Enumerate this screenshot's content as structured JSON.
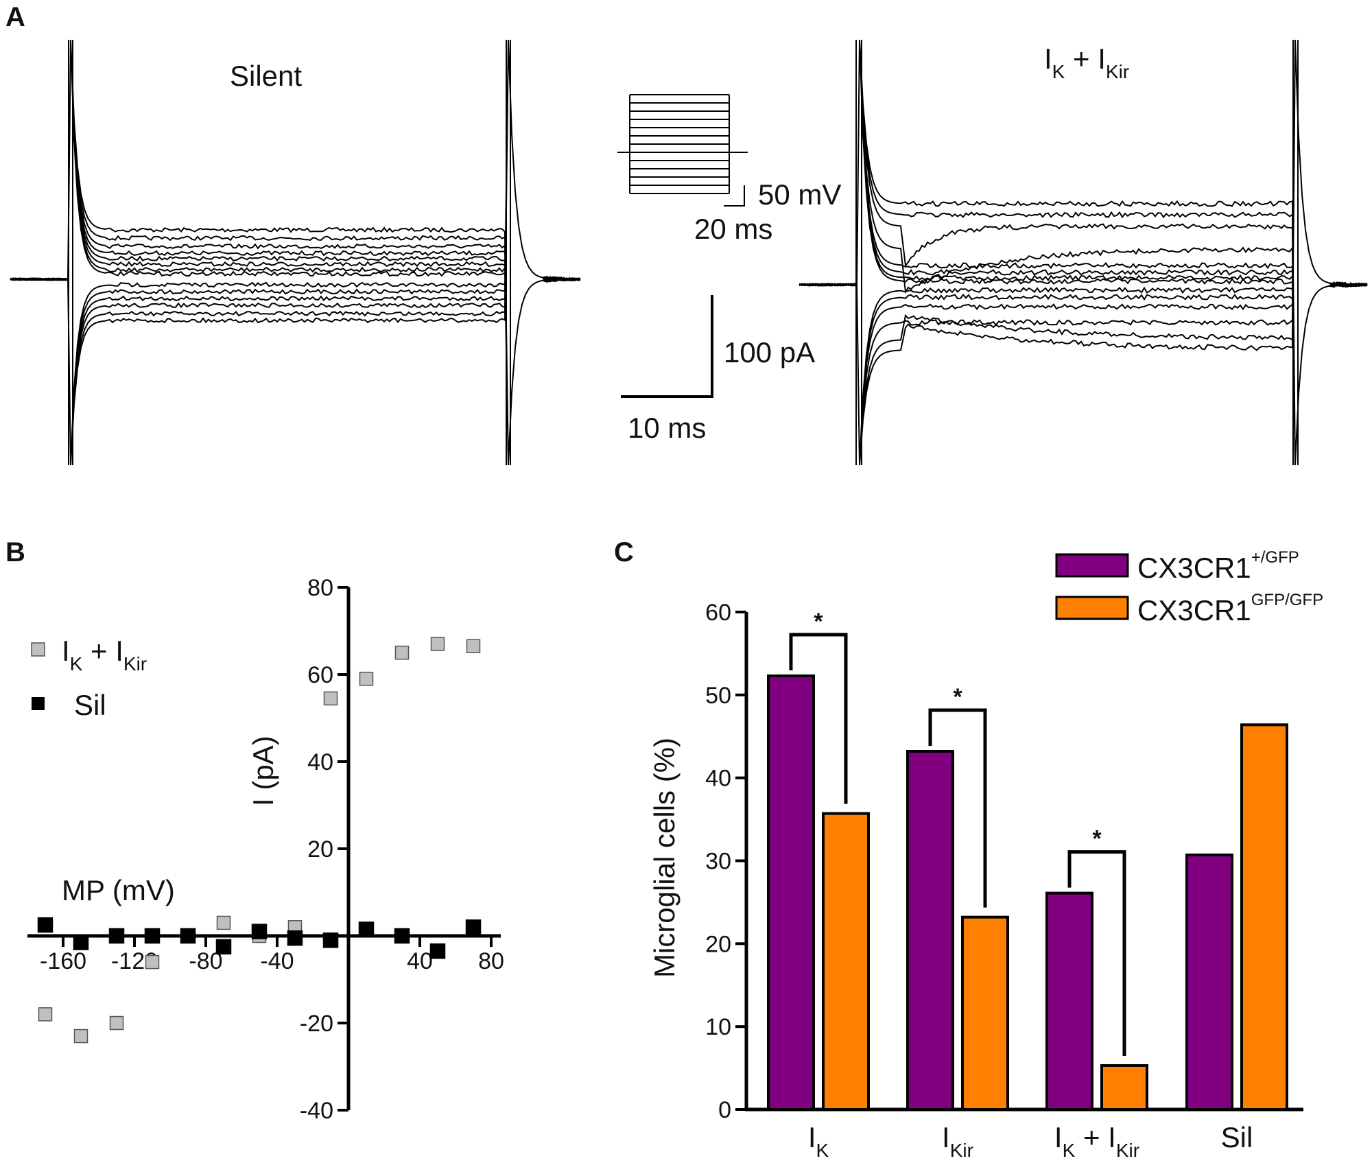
{
  "panel_labels": {
    "a": "A",
    "b": "B",
    "c": "C"
  },
  "panel_a": {
    "left_title": "Silent",
    "right_title_main": "I",
    "right_title_sub1": "K",
    "right_title_plus": " + I",
    "right_title_sub2": "Kir",
    "protocol_scale_v": "50 mV",
    "protocol_scale_t": "20 ms",
    "current_scale_y": "100 pA",
    "current_scale_x": "10 ms"
  },
  "chart_data": [
    {
      "id": "B",
      "type": "scatter",
      "title": "",
      "xlabel": "MP (mV)",
      "ylabel": "I (pA)",
      "xlim": [
        -180,
        85
      ],
      "ylim": [
        -40,
        80
      ],
      "xticks": [
        -160,
        -120,
        -80,
        -40,
        40,
        80
      ],
      "xtick_labels": [
        "-160",
        "-120",
        "-80",
        "-40",
        "40",
        "80"
      ],
      "yticks": [
        -40,
        -20,
        20,
        40,
        60,
        80
      ],
      "ytick_labels": [
        "-40",
        "-20",
        "20",
        "40",
        "60",
        "80"
      ],
      "legend_position": "top-left",
      "series": [
        {
          "name": "IK + IKir",
          "legend_main": "I",
          "legend_sub1": "K",
          "legend_plus": " + I",
          "legend_sub2": "Kir",
          "color": "#c0c0c0",
          "points": [
            [
              -170,
              -18
            ],
            [
              -150,
              -23
            ],
            [
              -130,
              -20
            ],
            [
              -110,
              -6
            ],
            [
              -70,
              3
            ],
            [
              -50,
              0
            ],
            [
              -30,
              2
            ],
            [
              -10,
              54.5
            ],
            [
              10,
              59
            ],
            [
              30,
              65
            ],
            [
              50,
              67
            ],
            [
              70,
              66.5
            ]
          ]
        },
        {
          "name": "Sil",
          "legend_main": "Sil",
          "color": "#000000",
          "points": [
            [
              -170,
              2.5
            ],
            [
              -150,
              -1.5
            ],
            [
              -130,
              0
            ],
            [
              -110,
              0
            ],
            [
              -90,
              0
            ],
            [
              -70,
              -2.5
            ],
            [
              -50,
              1
            ],
            [
              -30,
              -0.5
            ],
            [
              -10,
              -1
            ],
            [
              10,
              1.5
            ],
            [
              30,
              0
            ],
            [
              50,
              -3.5
            ],
            [
              70,
              2
            ]
          ]
        }
      ]
    },
    {
      "id": "C",
      "type": "bar",
      "title": "",
      "xlabel": "",
      "ylabel": "Microglial cells (%)",
      "ylim": [
        0,
        60
      ],
      "yticks": [
        0,
        10,
        20,
        30,
        40,
        50,
        60
      ],
      "ytick_labels": [
        "0",
        "10",
        "20",
        "30",
        "40",
        "50",
        "60"
      ],
      "legend_position": "top-right",
      "categories": [
        "IK",
        "IKir",
        "IK + IKir",
        "Sil"
      ],
      "category_labels": [
        {
          "main": "I",
          "sub": "K"
        },
        {
          "main": "I",
          "sub": "Kir"
        },
        {
          "main": "I",
          "sub": "K",
          "plus": " + I",
          "sub2": "Kir"
        },
        {
          "main": "Sil"
        }
      ],
      "series": [
        {
          "name": "CX3CR1+/GFP",
          "legend_main": "CX3CR1",
          "legend_sup": "+/GFP",
          "color": "#800080",
          "values": [
            52.3,
            43.2,
            26.1,
            30.7
          ]
        },
        {
          "name": "CX3CR1GFP/GFP",
          "legend_main": "CX3CR1",
          "legend_sup": "GFP/GFP",
          "color": "#ff8000",
          "values": [
            35.7,
            23.2,
            5.3,
            46.4
          ]
        }
      ],
      "significance": [
        {
          "category": 0,
          "label": "*"
        },
        {
          "category": 1,
          "label": "*"
        },
        {
          "category": 2,
          "label": "*"
        }
      ]
    }
  ]
}
